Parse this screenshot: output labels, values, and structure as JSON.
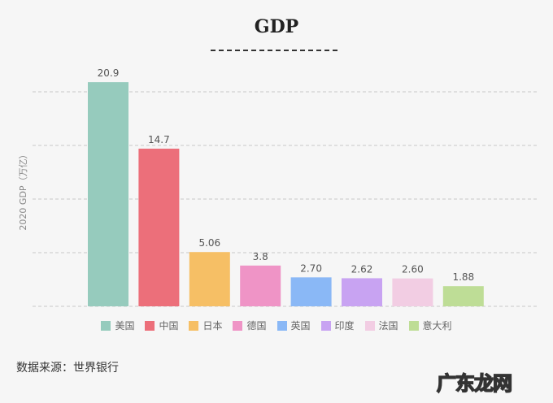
{
  "chart_data": {
    "type": "bar",
    "title": "GDP",
    "ylabel": "2020 GDP（万亿）",
    "xlabel": "",
    "categories": [
      "美国",
      "中国",
      "日本",
      "德国",
      "英国",
      "印度",
      "法国",
      "意大利"
    ],
    "values": [
      20.9,
      14.7,
      5.06,
      3.8,
      2.7,
      2.62,
      2.6,
      1.88
    ],
    "data_labels": [
      "20.9",
      "14.7",
      "5.06",
      "3.8",
      "2.70",
      "2.62",
      "2.60",
      "1.88"
    ],
    "colors": [
      "#96cbbd",
      "#ec6f7a",
      "#f6bf65",
      "#ef94c6",
      "#8ab8f6",
      "#c8a3f2",
      "#f2cde3",
      "#bedd96"
    ],
    "ylim": [
      0,
      21
    ],
    "gridlines": [
      0,
      5,
      10,
      15,
      20
    ],
    "grid": true,
    "legend_position": "bottom"
  },
  "footer": {
    "source": "数据来源：世界银行"
  },
  "watermark": "广东龙网"
}
